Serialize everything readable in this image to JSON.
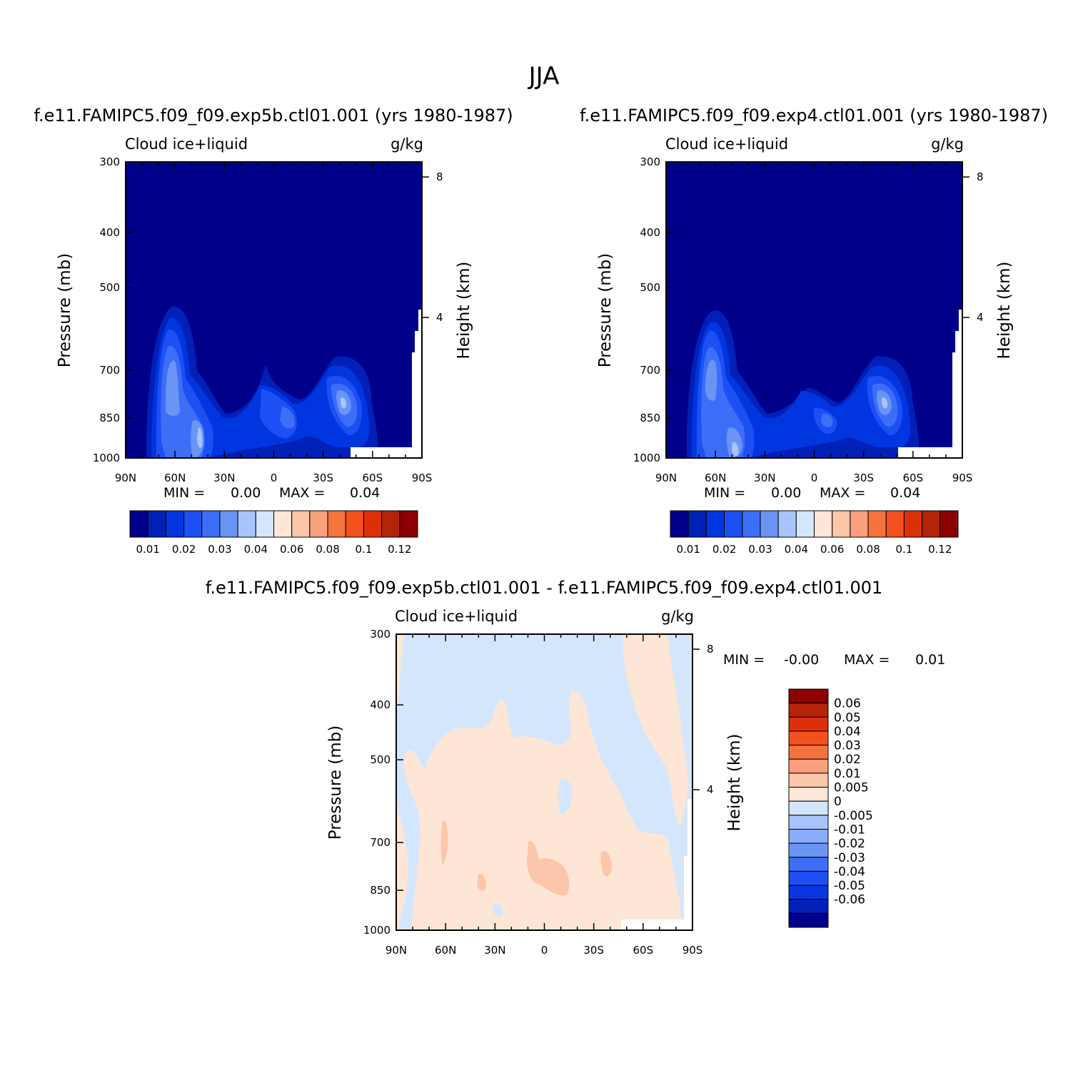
{
  "title": "JJA",
  "panels": [
    {
      "case_title": "f.e11.FAMIPC5.f09_f09.exp5b.ctl01.001 (yrs 1980-1987)",
      "variable": "Cloud ice+liquid",
      "units": "g/kg",
      "left_axis_label": "Pressure (mb)",
      "right_axis_label": "Height (km)",
      "min_label": "MIN =",
      "min_value": "0.00",
      "max_label": "MAX =",
      "max_value": "0.04"
    },
    {
      "case_title": "f.e11.FAMIPC5.f09_f09.exp4.ctl01.001 (yrs 1980-1987)",
      "variable": "Cloud ice+liquid",
      "units": "g/kg",
      "left_axis_label": "Pressure (mb)",
      "right_axis_label": "Height (km)",
      "min_label": "MIN =",
      "min_value": "0.00",
      "max_label": "MAX =",
      "max_value": "0.04"
    },
    {
      "case_title": "f.e11.FAMIPC5.f09_f09.exp5b.ctl01.001 - f.e11.FAMIPC5.f09_f09.exp4.ctl01.001",
      "variable": "Cloud ice+liquid",
      "units": "g/kg",
      "left_axis_label": "Pressure (mb)",
      "right_axis_label": "Height (km)",
      "min_label": "MIN =",
      "min_value": "-0.00",
      "max_label": "MAX =",
      "max_value": "0.01"
    }
  ],
  "colorbar_top": {
    "colors": [
      "#00008b",
      "#0020b8",
      "#0036e0",
      "#1c50f5",
      "#3c6ef8",
      "#6a95f5",
      "#aac4fb",
      "#d4e6fc",
      "#fde6d6",
      "#fcc6aa",
      "#f9a07c",
      "#f5743e",
      "#f4501e",
      "#dc3008",
      "#b42408",
      "#8c0000"
    ],
    "labels": [
      "0.01",
      "0.02",
      "0.03",
      "0.04",
      "0.06",
      "0.08",
      "0.1",
      "0.12"
    ]
  },
  "colorbar_diff": {
    "colors": [
      "#8c0000",
      "#b42408",
      "#dc3008",
      "#f4501e",
      "#f5743e",
      "#f9a07c",
      "#fcc6aa",
      "#fde6d6",
      "#d4e6fc",
      "#aac4fb",
      "#8aacfa",
      "#6a95f5",
      "#3c6ef8",
      "#1c50f5",
      "#0836e0",
      "#0020b8",
      "#00008b"
    ],
    "labels": [
      "0.06",
      "0.05",
      "0.04",
      "0.03",
      "0.02",
      "0.01",
      "0.005",
      "0",
      "-0.005",
      "-0.01",
      "-0.02",
      "-0.03",
      "-0.04",
      "-0.05",
      "-0.06"
    ]
  },
  "chart_data": [
    {
      "type": "heatmap",
      "name": "exp5b zonal mean cloud ice+liquid",
      "x_ticks": [
        "90N",
        "60N",
        "30N",
        "0",
        "30S",
        "60S",
        "90S"
      ],
      "x_range": [
        90,
        -90
      ],
      "y_ticks": [
        "300",
        "400",
        "500",
        "700",
        "850",
        "1000"
      ],
      "y_range_mb": [
        300,
        1000
      ],
      "height_ticks_km": [
        "8",
        "4"
      ],
      "levels": [
        0.01,
        0.02,
        0.03,
        0.04,
        0.06,
        0.08,
        0.1,
        0.12
      ],
      "features": [
        {
          "region": "NH mid-latitude low clouds",
          "lat": [
            75,
            35
          ],
          "p_mb": [
            650,
            1000
          ],
          "peak_value": 0.04
        },
        {
          "region": "tropical shallow clouds",
          "lat": [
            5,
            -15
          ],
          "p_mb": [
            810,
            930
          ],
          "peak_value": 0.02
        },
        {
          "region": "SH mid-latitude low clouds",
          "lat": [
            -30,
            -60
          ],
          "p_mb": [
            780,
            950
          ],
          "peak_value": 0.04
        }
      ],
      "min": 0.0,
      "max": 0.04
    },
    {
      "type": "heatmap",
      "name": "exp4 zonal mean cloud ice+liquid",
      "x_ticks": [
        "90N",
        "60N",
        "30N",
        "0",
        "30S",
        "60S",
        "90S"
      ],
      "x_range": [
        90,
        -90
      ],
      "y_ticks": [
        "300",
        "400",
        "500",
        "700",
        "850",
        "1000"
      ],
      "y_range_mb": [
        300,
        1000
      ],
      "height_ticks_km": [
        "8",
        "4"
      ],
      "levels": [
        0.01,
        0.02,
        0.03,
        0.04,
        0.06,
        0.08,
        0.1,
        0.12
      ],
      "features": [
        {
          "region": "NH mid-latitude low clouds",
          "lat": [
            75,
            35
          ],
          "p_mb": [
            650,
            1000
          ],
          "peak_value": 0.04
        },
        {
          "region": "tropical shallow clouds",
          "lat": [
            5,
            -15
          ],
          "p_mb": [
            810,
            930
          ],
          "peak_value": 0.02
        },
        {
          "region": "SH mid-latitude low clouds",
          "lat": [
            -30,
            -60
          ],
          "p_mb": [
            780,
            950
          ],
          "peak_value": 0.04
        }
      ],
      "min": 0.0,
      "max": 0.04
    },
    {
      "type": "heatmap",
      "name": "difference exp5b - exp4",
      "x_ticks": [
        "90N",
        "60N",
        "30N",
        "0",
        "30S",
        "60S",
        "90S"
      ],
      "x_range": [
        90,
        -90
      ],
      "y_ticks": [
        "300",
        "400",
        "500",
        "700",
        "850",
        "1000"
      ],
      "y_range_mb": [
        300,
        1000
      ],
      "height_ticks_km": [
        "8",
        "4"
      ],
      "levels": [
        -0.06,
        -0.05,
        -0.04,
        -0.03,
        -0.02,
        -0.01,
        -0.005,
        0,
        0.005,
        0.01,
        0.02,
        0.03,
        0.04,
        0.05,
        0.06
      ],
      "dominant_values": [
        0,
        0.005
      ],
      "min": -0.0,
      "max": 0.01
    }
  ]
}
